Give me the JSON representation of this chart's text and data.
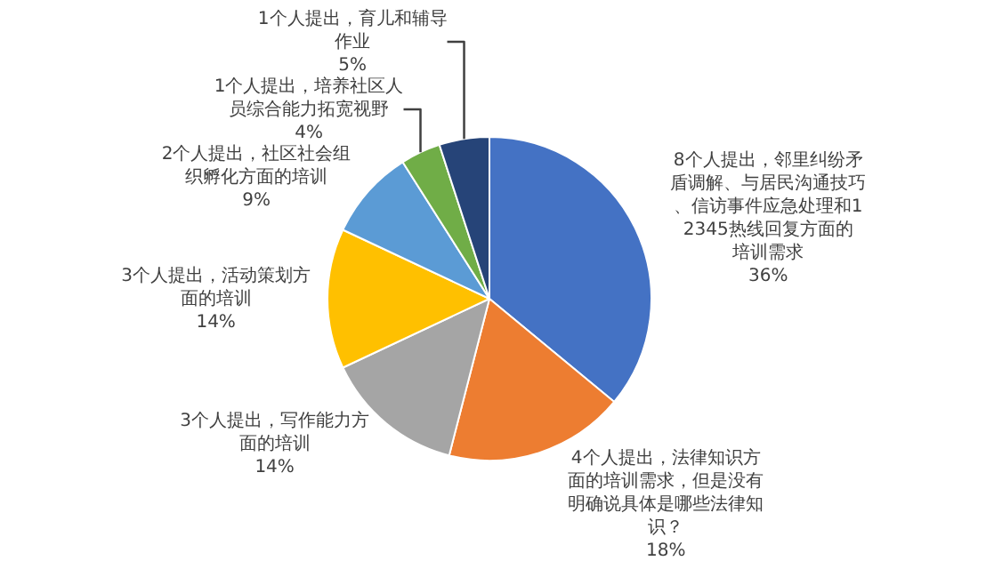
{
  "chart_data": {
    "type": "pie",
    "categories": [
      "8个人提出，邻里纠纷矛盾调解、与居民沟通技巧、信访事件应急处理和12345热线回复方面的培训需求",
      "4个人提出，法律知识方面的培训需求，但是没有明确说具体是哪些法律知识？",
      "3个人提出，写作能力方面的培训",
      "3个人提出，活动策划方面的培训",
      "2个人提出，社区社会组织孵化方面的培训",
      "1个人提出，培养社区人员综合能力拓宽视野",
      "1个人提出，育儿和辅导作业"
    ],
    "values": [
      36,
      18,
      14,
      14,
      9,
      4,
      5
    ],
    "value_labels": [
      "36%",
      "18%",
      "14%",
      "14%",
      "9%",
      "4%",
      "5%"
    ],
    "colors": [
      "#4472c4",
      "#ed7d31",
      "#a5a5a5",
      "#ffc000",
      "#5b9bd5",
      "#70ad47",
      "#264478"
    ],
    "legend": false
  }
}
